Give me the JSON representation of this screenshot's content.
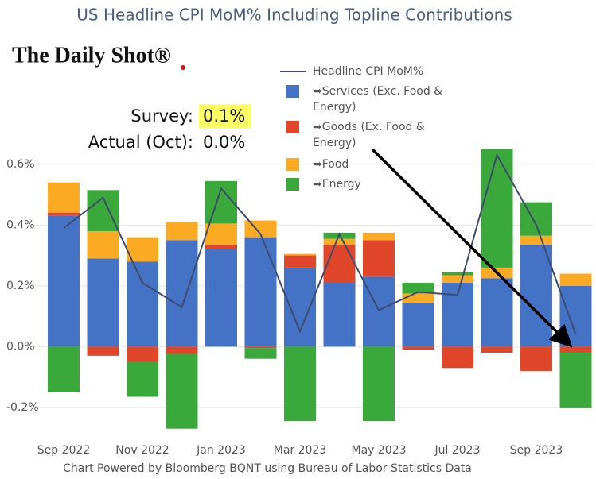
{
  "chart_data": {
    "type": "bar",
    "title": "US Headline CPI MoM% Including Topline Contributions",
    "logo": "The Daily Shot®",
    "annotations": [
      {
        "label": "Survey:",
        "value": "0.1%"
      },
      {
        "label": "Actual (Oct):",
        "value": "0.0%"
      }
    ],
    "source": "Chart Powered by Bloomberg BQNT using Bureau of Labor Statistics Data",
    "categories": [
      "Sep 2022",
      null,
      "Nov 2022",
      null,
      "Jan 2023",
      null,
      "Mar 2023",
      null,
      "May 2023",
      null,
      "Jul 2023",
      null,
      "Sep 2023",
      null
    ],
    "series": [
      {
        "name": "Headline CPI MoM%",
        "type": "line",
        "color": "#3d4b6e",
        "values": [
          0.39,
          0.49,
          0.21,
          0.13,
          0.52,
          0.37,
          0.05,
          0.37,
          0.12,
          0.18,
          0.17,
          0.63,
          0.4,
          0.04
        ]
      },
      {
        "name": "➥Services (Exc. Food & Energy)",
        "color": "#4472c4",
        "values": [
          0.43,
          0.29,
          0.28,
          0.35,
          0.32,
          0.36,
          0.26,
          0.21,
          0.23,
          0.145,
          0.21,
          0.225,
          0.335,
          0.2
        ]
      },
      {
        "name": "➥Goods (Ex. Food & Energy)",
        "color": "#e0462a",
        "values": [
          0.01,
          -0.03,
          -0.05,
          -0.025,
          0.015,
          -0.005,
          0.04,
          0.125,
          0.12,
          -0.01,
          -0.07,
          -0.02,
          -0.08,
          -0.02
        ]
      },
      {
        "name": "➥Food",
        "color": "#fbab23",
        "values": [
          0.1,
          0.09,
          0.08,
          0.06,
          0.07,
          0.055,
          0.005,
          0.02,
          0.025,
          0.03,
          0.025,
          0.035,
          0.03,
          0.04
        ]
      },
      {
        "name": "➥Energy",
        "color": "#3aa83a",
        "values": [
          -0.15,
          0.135,
          -0.115,
          -0.245,
          0.14,
          -0.035,
          -0.245,
          0.02,
          -0.245,
          0.035,
          0.01,
          0.39,
          0.11,
          -0.18
        ]
      }
    ],
    "ylim": [
      -0.31,
      0.67
    ],
    "yticks": [
      {
        "value": -0.2,
        "label": "-0.2%"
      },
      {
        "value": 0,
        "label": "0.0%"
      },
      {
        "value": 0.2,
        "label": "0.2%"
      },
      {
        "value": 0.4,
        "label": "0.4%"
      },
      {
        "value": 0.6,
        "label": "0.6%"
      }
    ],
    "grid": true
  }
}
